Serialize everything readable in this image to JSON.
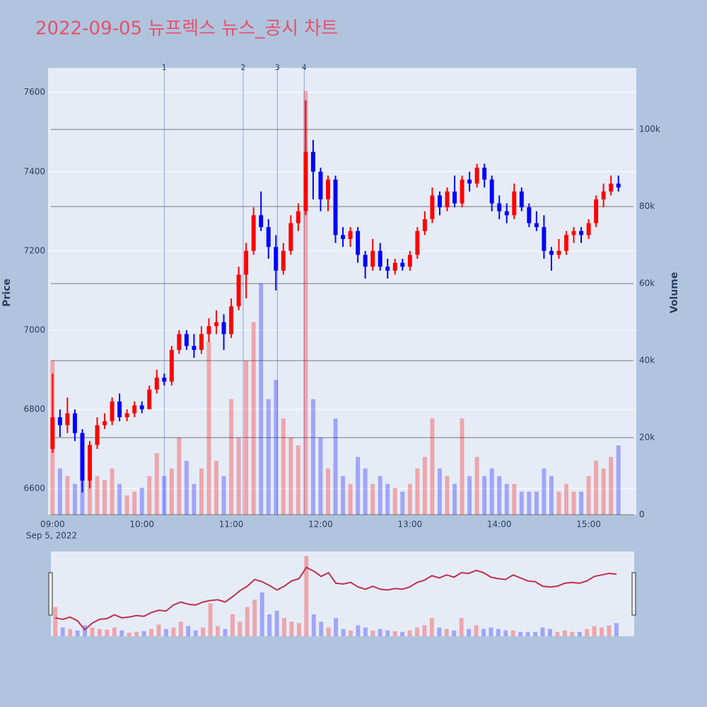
{
  "chart_data": {
    "type": "candlestick",
    "title": "2022-09-05 뉴프렉스 뉴스_공시 차트",
    "y_title": "Price",
    "y2_title": "Volume",
    "x": [
      "09:00",
      "09:05",
      "09:10",
      "09:15",
      "09:20",
      "09:25",
      "09:30",
      "09:35",
      "09:40",
      "09:45",
      "09:50",
      "09:55",
      "10:00",
      "10:05",
      "10:10",
      "10:15",
      "10:20",
      "10:25",
      "10:30",
      "10:35",
      "10:40",
      "10:45",
      "10:50",
      "10:55",
      "11:00",
      "11:05",
      "11:10",
      "11:15",
      "11:20",
      "11:25",
      "11:30",
      "11:35",
      "11:40",
      "11:45",
      "11:50",
      "11:55",
      "12:00",
      "12:05",
      "12:10",
      "12:15",
      "12:20",
      "12:25",
      "12:30",
      "12:35",
      "12:40",
      "12:45",
      "12:50",
      "12:55",
      "13:00",
      "13:05",
      "13:10",
      "13:15",
      "13:20",
      "13:25",
      "13:30",
      "13:35",
      "13:40",
      "13:45",
      "13:50",
      "13:55",
      "14:00",
      "14:05",
      "14:10",
      "14:15",
      "14:20",
      "14:25",
      "14:30",
      "14:35",
      "14:40",
      "14:45",
      "14:50",
      "14:55",
      "15:00",
      "15:05",
      "15:10",
      "15:15",
      "15:20"
    ],
    "open": [
      6700,
      6780,
      6760,
      6790,
      6740,
      6620,
      6710,
      6760,
      6770,
      6820,
      6780,
      6790,
      6810,
      6800,
      6850,
      6880,
      6870,
      6950,
      6990,
      6960,
      6950,
      6990,
      7010,
      7020,
      6990,
      7060,
      7140,
      7200,
      7290,
      7260,
      7210,
      7150,
      7200,
      7270,
      7300,
      7450,
      7400,
      7330,
      7380,
      7240,
      7230,
      7250,
      7190,
      7160,
      7200,
      7160,
      7150,
      7170,
      7160,
      7190,
      7250,
      7280,
      7340,
      7310,
      7350,
      7320,
      7380,
      7370,
      7410,
      7380,
      7320,
      7300,
      7290,
      7350,
      7310,
      7270,
      7260,
      7200,
      7190,
      7200,
      7240,
      7250,
      7240,
      7270,
      7330,
      7350,
      7370
    ],
    "high": [
      6890,
      6800,
      6830,
      6800,
      6750,
      6720,
      6780,
      6790,
      6830,
      6840,
      6800,
      6820,
      6820,
      6860,
      6900,
      6890,
      6960,
      7000,
      7000,
      6990,
      7010,
      7030,
      7050,
      7040,
      7080,
      7160,
      7220,
      7310,
      7350,
      7280,
      7240,
      7220,
      7290,
      7320,
      7580,
      7480,
      7410,
      7390,
      7390,
      7260,
      7260,
      7260,
      7200,
      7230,
      7220,
      7180,
      7180,
      7180,
      7200,
      7260,
      7300,
      7360,
      7350,
      7360,
      7390,
      7390,
      7400,
      7420,
      7420,
      7390,
      7340,
      7320,
      7370,
      7360,
      7320,
      7300,
      7290,
      7210,
      7230,
      7250,
      7260,
      7260,
      7280,
      7340,
      7370,
      7390,
      7390
    ],
    "low": [
      6690,
      6730,
      6740,
      6720,
      6590,
      6600,
      6700,
      6750,
      6760,
      6770,
      6770,
      6780,
      6790,
      6800,
      6840,
      6860,
      6860,
      6940,
      6950,
      6930,
      6940,
      6970,
      6990,
      6950,
      6980,
      7050,
      7080,
      7190,
      7250,
      7180,
      7100,
      7140,
      7190,
      7250,
      7290,
      7330,
      7300,
      7300,
      7220,
      7210,
      7210,
      7170,
      7130,
      7150,
      7150,
      7130,
      7140,
      7150,
      7150,
      7180,
      7240,
      7270,
      7290,
      7300,
      7310,
      7310,
      7350,
      7360,
      7360,
      7300,
      7280,
      7270,
      7280,
      7300,
      7260,
      7250,
      7180,
      7150,
      7180,
      7190,
      7220,
      7220,
      7230,
      7260,
      7310,
      7340,
      7350
    ],
    "close": [
      6780,
      6760,
      6790,
      6740,
      6620,
      6710,
      6760,
      6770,
      6820,
      6780,
      6790,
      6810,
      6800,
      6850,
      6880,
      6870,
      6950,
      6990,
      6960,
      6950,
      6990,
      7010,
      7020,
      6990,
      7060,
      7140,
      7200,
      7290,
      7260,
      7210,
      7150,
      7200,
      7270,
      7300,
      7450,
      7400,
      7330,
      7380,
      7240,
      7230,
      7250,
      7190,
      7160,
      7200,
      7160,
      7150,
      7170,
      7160,
      7190,
      7250,
      7280,
      7340,
      7310,
      7350,
      7320,
      7380,
      7370,
      7410,
      7380,
      7320,
      7300,
      7290,
      7350,
      7310,
      7270,
      7260,
      7200,
      7190,
      7200,
      7240,
      7250,
      7240,
      7270,
      7330,
      7350,
      7370,
      7360
    ],
    "volume": [
      40000,
      12000,
      10000,
      8000,
      15000,
      12000,
      10000,
      9000,
      12000,
      8000,
      5000,
      6000,
      7000,
      10000,
      16000,
      10000,
      12000,
      20000,
      14000,
      8000,
      12000,
      45000,
      14000,
      10000,
      30000,
      20000,
      40000,
      50000,
      60000,
      30000,
      35000,
      25000,
      20000,
      18000,
      110000,
      30000,
      20000,
      12000,
      25000,
      10000,
      8000,
      15000,
      12000,
      8000,
      10000,
      8000,
      7000,
      6000,
      8000,
      12000,
      15000,
      25000,
      12000,
      10000,
      8000,
      25000,
      10000,
      15000,
      10000,
      12000,
      10000,
      8000,
      8000,
      6000,
      6000,
      6000,
      12000,
      10000,
      6000,
      8000,
      6000,
      6000,
      10000,
      14000,
      12000,
      15000,
      18000
    ],
    "increasing_color": "#ff0000",
    "decreasing_color": "#0000ff",
    "xlim": [
      "08:57",
      "15:32"
    ],
    "xticks": [
      "09:00",
      "10:00",
      "11:00",
      "12:00",
      "13:00",
      "14:00",
      "15:00"
    ],
    "x_date": "Sep 5, 2022",
    "ylim": [
      6534,
      7662
    ],
    "yticks": [
      6600,
      6800,
      7000,
      7200,
      7400,
      7600
    ],
    "y2lim": [
      0,
      116000
    ],
    "y2ticks": [
      0,
      {
        "value": 20000,
        "label": "20k"
      },
      {
        "value": 40000,
        "label": "40k"
      },
      {
        "value": 60000,
        "label": "60k"
      },
      {
        "value": 80000,
        "label": "80k"
      },
      {
        "value": 100000,
        "label": "100k"
      }
    ],
    "annotations": [
      {
        "x": "10:15",
        "text": "1"
      },
      {
        "x": "11:08",
        "text": "2"
      },
      {
        "x": "11:31",
        "text": "3"
      },
      {
        "x": "11:49",
        "text": "4"
      }
    ],
    "grid": true,
    "rangeslider": true
  }
}
